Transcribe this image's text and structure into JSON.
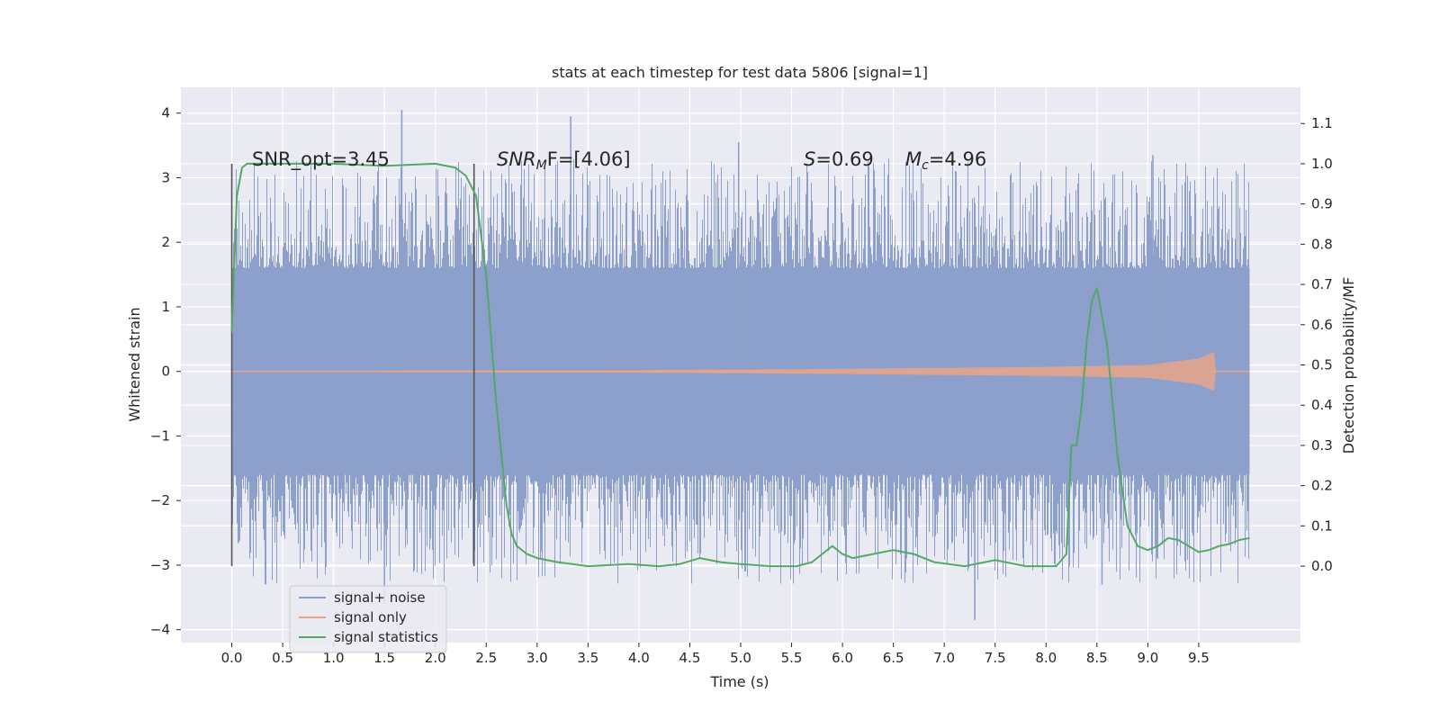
{
  "chart_data": {
    "type": "line",
    "title": "stats at each timestep for test data 5806 [signal=1]",
    "xlabel": "Time (s)",
    "ylabel": "Whitened strain",
    "ylabel_right": "Detection probability/MF",
    "xlim": [
      -0.5,
      10.5
    ],
    "ylim": [
      -4.2,
      4.4
    ],
    "ylim_right": [
      -0.19,
      1.19
    ],
    "x_ticks": [
      "0.0",
      "0.5",
      "1.0",
      "1.5",
      "2.0",
      "2.5",
      "3.0",
      "3.5",
      "4.0",
      "4.5",
      "5.0",
      "5.5",
      "6.0",
      "6.5",
      "7.0",
      "7.5",
      "8.0",
      "8.5",
      "9.0",
      "9.5"
    ],
    "y_ticks": [
      "4",
      "3",
      "2",
      "1",
      "0",
      "−1",
      "−2",
      "−3",
      "−4"
    ],
    "y_ticks_right": [
      "1.1",
      "1.0",
      "0.9",
      "0.8",
      "0.7",
      "0.6",
      "0.5",
      "0.4",
      "0.3",
      "0.2",
      "0.1",
      "0.0"
    ],
    "grid": true,
    "legend_position": "bottom-left",
    "annotations": {
      "snr_opt": "SNR_opt=3.45",
      "snr_mf_label": "SNR",
      "snr_mf_sub": "M",
      "snr_mf_rest": "F=[4.06]",
      "s_label": "S",
      "s_value": "=0.69",
      "mc_label": "M",
      "mc_sub": "c",
      "mc_value": "=4.96"
    },
    "markers_x": [
      0.0,
      2.38
    ],
    "series": [
      {
        "name": "signal+ noise",
        "color": "#8da0cb",
        "axis": "left",
        "x_range": [
          0.0,
          10.0
        ],
        "band": [
          -1.6,
          1.6
        ],
        "notable_spikes": [
          [
            1.67,
            4.05
          ],
          [
            3.33,
            3.95
          ],
          [
            4.98,
            3.55
          ],
          [
            9.05,
            3.35
          ],
          [
            7.3,
            -3.85
          ],
          [
            1.5,
            -3.6
          ],
          [
            8.55,
            -3.3
          ],
          [
            0.33,
            -3.3
          ]
        ]
      },
      {
        "name": "signal only",
        "color": "#e6a58b",
        "axis": "left",
        "x_range": [
          0.0,
          10.0
        ],
        "envelope": {
          "x": [
            0.0,
            4.0,
            6.0,
            8.0,
            9.0,
            9.5,
            9.65,
            9.67,
            10.0
          ],
          "amp": [
            0.01,
            0.02,
            0.04,
            0.07,
            0.1,
            0.2,
            0.3,
            0.0,
            0.0
          ]
        }
      },
      {
        "name": "signal statistics",
        "color": "#55a868",
        "axis": "right",
        "x": [
          0.0,
          0.05,
          0.1,
          0.15,
          0.25,
          0.5,
          1.0,
          1.5,
          2.0,
          2.2,
          2.3,
          2.4,
          2.5,
          2.6,
          2.7,
          2.75,
          2.8,
          2.9,
          3.0,
          3.2,
          3.5,
          3.9,
          4.2,
          4.4,
          4.6,
          4.8,
          5.0,
          5.3,
          5.55,
          5.7,
          5.8,
          5.9,
          6.0,
          6.1,
          6.3,
          6.5,
          6.7,
          6.9,
          7.2,
          7.5,
          7.8,
          8.1,
          8.2,
          8.25,
          8.3,
          8.35,
          8.4,
          8.45,
          8.5,
          8.6,
          8.7,
          8.8,
          8.9,
          9.0,
          9.1,
          9.2,
          9.3,
          9.4,
          9.5,
          9.6,
          9.7,
          9.8,
          9.9,
          10.0
        ],
        "values": [
          0.58,
          0.92,
          0.99,
          1.0,
          1.0,
          1.0,
          1.0,
          0.995,
          1.0,
          0.99,
          0.97,
          0.92,
          0.72,
          0.4,
          0.15,
          0.08,
          0.05,
          0.03,
          0.02,
          0.01,
          0.0,
          0.005,
          0.0,
          0.005,
          0.02,
          0.01,
          0.005,
          0.0,
          0.0,
          0.01,
          0.03,
          0.05,
          0.03,
          0.02,
          0.03,
          0.04,
          0.03,
          0.01,
          0.0,
          0.015,
          0.0,
          0.0,
          0.03,
          0.3,
          0.3,
          0.4,
          0.56,
          0.66,
          0.69,
          0.55,
          0.28,
          0.1,
          0.05,
          0.04,
          0.05,
          0.07,
          0.065,
          0.05,
          0.035,
          0.04,
          0.05,
          0.055,
          0.065,
          0.07
        ]
      }
    ]
  }
}
